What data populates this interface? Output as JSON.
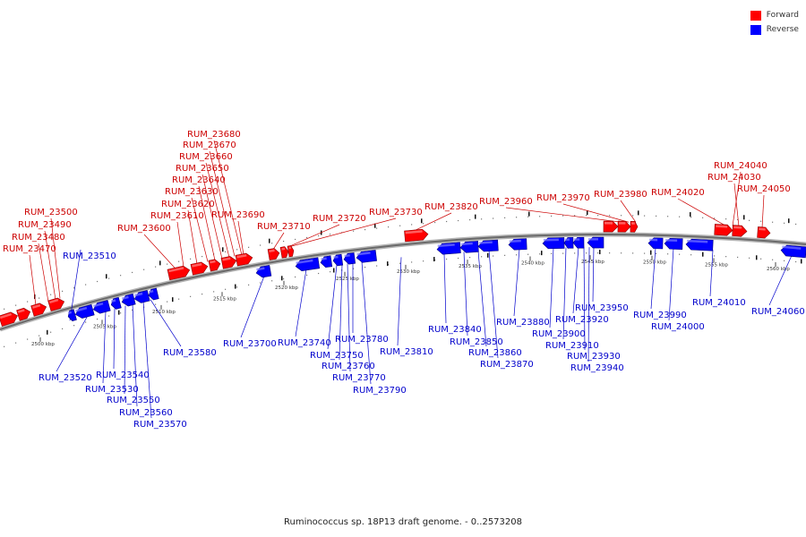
{
  "caption": "Ruminococcus sp. 18P13 draft genome. - 0..2573208",
  "legend": [
    {
      "label": "Forward",
      "color": "#ff0000"
    },
    {
      "label": "Reverse",
      "color": "#0000ff"
    }
  ],
  "colors": {
    "forward_label": "#cc0000",
    "reverse_label": "#0000cc",
    "axis": "#555555"
  },
  "scale_ticks": [
    "2500 kbp",
    "2505 kbp",
    "2510 kbp",
    "2515 kbp",
    "2520 kbp",
    "2525 kbp",
    "2530 kbp",
    "2535 kbp",
    "2540 kbp",
    "2545 kbp",
    "2550 kbp",
    "2555 kbp",
    "2560 kbp"
  ],
  "forward_genes": [
    "RUM_23470",
    "RUM_23480",
    "RUM_23490",
    "RUM_23500",
    "RUM_23600",
    "RUM_23610",
    "RUM_23620",
    "RUM_23630",
    "RUM_23640",
    "RUM_23650",
    "RUM_23660",
    "RUM_23670",
    "RUM_23680",
    "RUM_23690",
    "RUM_23710",
    "RUM_23720",
    "RUM_23730",
    "RUM_23820",
    "RUM_23960",
    "RUM_23970",
    "RUM_23980",
    "RUM_24020",
    "RUM_24030",
    "RUM_24040",
    "RUM_24050"
  ],
  "reverse_genes": [
    "RUM_23510",
    "RUM_23520",
    "RUM_23530",
    "RUM_23540",
    "RUM_23550",
    "RUM_23560",
    "RUM_23570",
    "RUM_23580",
    "RUM_23700",
    "RUM_23740",
    "RUM_23750",
    "RUM_23760",
    "RUM_23770",
    "RUM_23780",
    "RUM_23790",
    "RUM_23810",
    "RUM_23840",
    "RUM_23850",
    "RUM_23860",
    "RUM_23870",
    "RUM_23880",
    "RUM_23900",
    "RUM_23910",
    "RUM_23920",
    "RUM_23930",
    "RUM_23940",
    "RUM_23950",
    "RUM_23990",
    "RUM_24000",
    "RUM_24010",
    "RUM_24060"
  ]
}
